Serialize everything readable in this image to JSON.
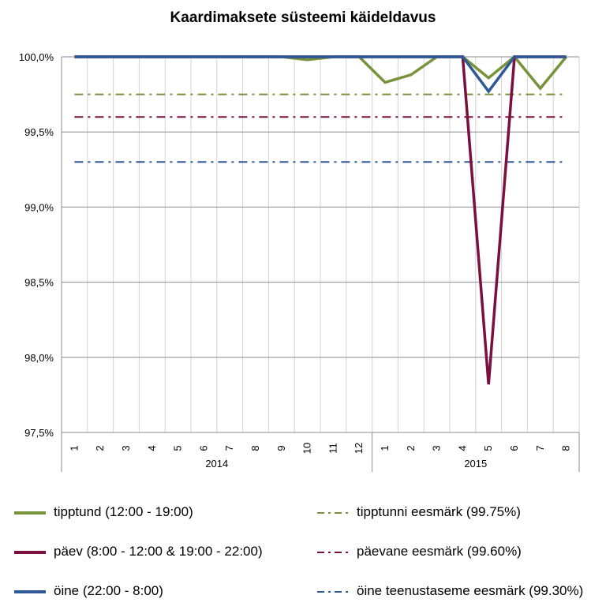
{
  "chart_data": {
    "type": "line",
    "title": "Kaardimaksete süsteemi käideldavus",
    "ylim": [
      97.5,
      100.0
    ],
    "yticks": [
      "97,5%",
      "98,0%",
      "98,5%",
      "99,0%",
      "99,5%",
      "100,0%"
    ],
    "ytick_values": [
      97.5,
      98.0,
      98.5,
      99.0,
      99.5,
      100.0
    ],
    "categories": [
      "1",
      "2",
      "3",
      "4",
      "5",
      "6",
      "7",
      "8",
      "9",
      "10",
      "11",
      "12",
      "1",
      "2",
      "3",
      "4",
      "5",
      "6",
      "7",
      "8"
    ],
    "groups": [
      {
        "label": "2014",
        "count": 12
      },
      {
        "label": "2015",
        "count": 8
      }
    ],
    "grid": true,
    "legend_position": "bottom",
    "series": [
      {
        "name": "tipptund (12:00 - 19:00)",
        "color": "#77933c",
        "style": "solid",
        "values": [
          100,
          100,
          100,
          100,
          100,
          100,
          100,
          100,
          100,
          99.98,
          100,
          100,
          99.83,
          99.88,
          100,
          100,
          99.86,
          100,
          99.79,
          100
        ]
      },
      {
        "name": "päev (8:00 - 12:00 & 19:00 - 22:00)",
        "color": "#7b1040",
        "style": "solid",
        "values": [
          100,
          100,
          100,
          100,
          100,
          100,
          100,
          100,
          100,
          100,
          100,
          100,
          100,
          100,
          100,
          100,
          97.82,
          100,
          100,
          100
        ]
      },
      {
        "name": "öine (22:00 - 8:00)",
        "color": "#2f5896",
        "style": "solid",
        "values": [
          100,
          100,
          100,
          100,
          100,
          100,
          100,
          100,
          100,
          100,
          100,
          100,
          100,
          100,
          100,
          100,
          99.77,
          100,
          100,
          100
        ]
      },
      {
        "name": "tipptunni eesmärk (99.75%)",
        "color": "#77933c",
        "style": "dashdot",
        "values": [
          99.75,
          99.75,
          99.75,
          99.75,
          99.75,
          99.75,
          99.75,
          99.75,
          99.75,
          99.75,
          99.75,
          99.75,
          99.75,
          99.75,
          99.75,
          99.75,
          99.75,
          99.75,
          99.75,
          99.75
        ]
      },
      {
        "name": "päevane eesmärk (99.60%)",
        "color": "#7b1040",
        "style": "dashdot",
        "values": [
          99.6,
          99.6,
          99.6,
          99.6,
          99.6,
          99.6,
          99.6,
          99.6,
          99.6,
          99.6,
          99.6,
          99.6,
          99.6,
          99.6,
          99.6,
          99.6,
          99.6,
          99.6,
          99.6,
          99.6
        ]
      },
      {
        "name": "öine teenustaseme eesmärk (99.30%)",
        "color": "#2f5896",
        "style": "dashdot",
        "values": [
          99.3,
          99.3,
          99.3,
          99.3,
          99.3,
          99.3,
          99.3,
          99.3,
          99.3,
          99.3,
          99.3,
          99.3,
          99.3,
          99.3,
          99.3,
          99.3,
          99.3,
          99.3,
          99.3,
          99.3
        ]
      }
    ]
  }
}
